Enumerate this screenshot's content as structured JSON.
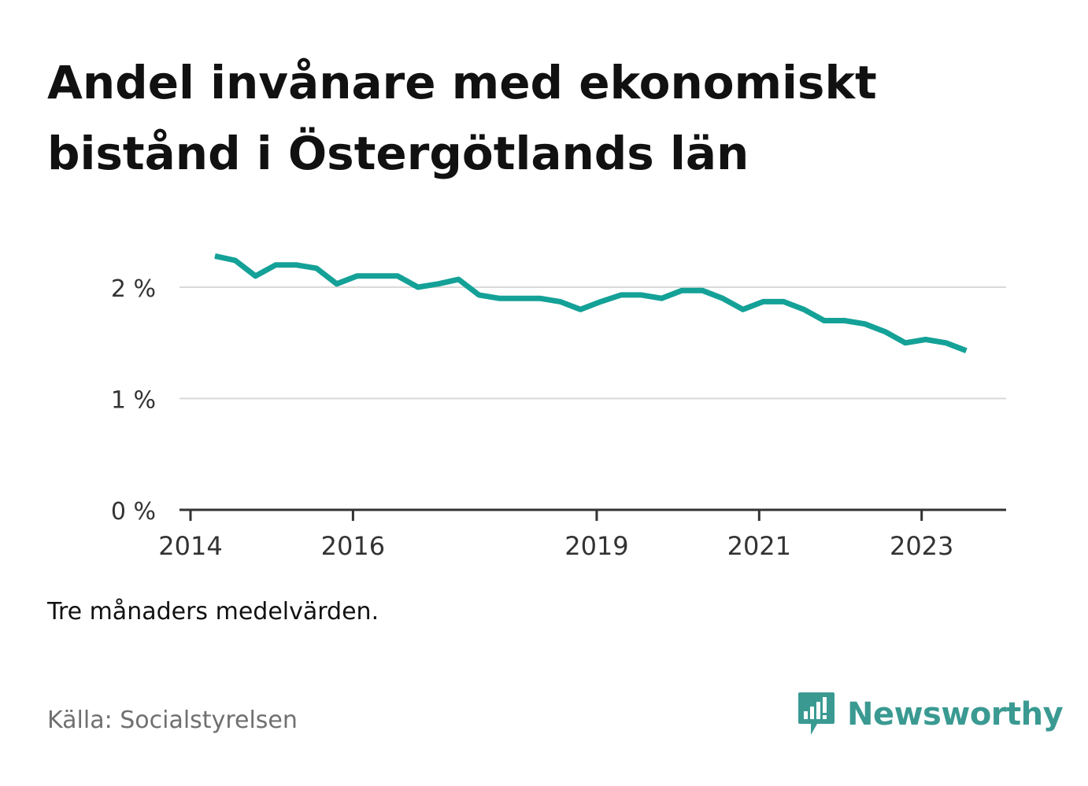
{
  "header": {
    "title": "Andel invånare med ekonomiskt bistånd i Östergötlands län"
  },
  "footer": {
    "note": "Tre månaders medelvärden.",
    "source": "Källa: Socialstyrelsen",
    "brand": "Newsworthy",
    "brand_icon": "bar-chart-speech-bubble-icon"
  },
  "colors": {
    "line": "#14a197",
    "grid": "#d9d9d9",
    "axis": "#333333",
    "brand": "#3a9a92"
  },
  "chart_data": {
    "type": "line",
    "title": "Andel invånare med ekonomiskt bistånd i Östergötlands län",
    "xlabel": "",
    "ylabel": "",
    "x_tick_labels": [
      "2014",
      "2016",
      "2019",
      "2021",
      "2023"
    ],
    "x_ticks": [
      2014,
      2016,
      2019,
      2021,
      2023
    ],
    "y_tick_labels": [
      "0 %",
      "1 %",
      "2 %"
    ],
    "y_ticks": [
      0,
      1,
      2
    ],
    "xlim": [
      2014,
      2024.04
    ],
    "ylim": [
      0,
      2.0
    ],
    "grid": true,
    "series": [
      {
        "x": [
          2014.3,
          2014.55,
          2014.8,
          2015.05,
          2015.3,
          2015.55,
          2015.8,
          2016.05,
          2016.3,
          2016.55,
          2016.8,
          2017.05,
          2017.3,
          2017.55,
          2017.8,
          2018.05,
          2018.3,
          2018.55,
          2018.8,
          2019.05,
          2019.3,
          2019.55,
          2019.8,
          2020.05,
          2020.3,
          2020.55,
          2020.8,
          2021.05,
          2021.3,
          2021.55,
          2021.8,
          2022.05,
          2022.3,
          2022.55,
          2022.8,
          2023.05,
          2023.3,
          2023.55
        ],
        "values": [
          2.28,
          2.24,
          2.1,
          2.2,
          2.2,
          2.17,
          2.03,
          2.1,
          2.1,
          2.1,
          2.0,
          2.03,
          2.07,
          1.93,
          1.9,
          1.9,
          1.9,
          1.87,
          1.8,
          1.87,
          1.93,
          1.93,
          1.9,
          1.97,
          1.97,
          1.9,
          1.8,
          1.87,
          1.87,
          1.8,
          1.7,
          1.7,
          1.67,
          1.6,
          1.5,
          1.53,
          1.5,
          1.43
        ]
      }
    ]
  }
}
